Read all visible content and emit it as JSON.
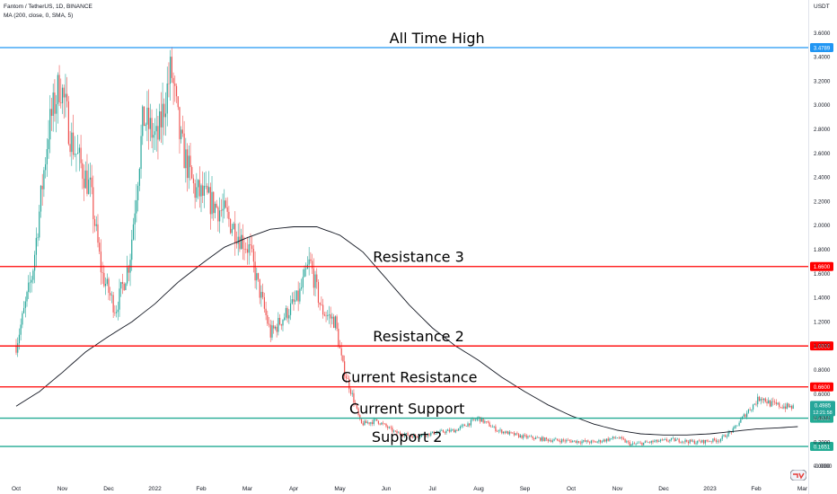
{
  "header": {
    "symbol_line": "Fantom / TetherUS, 1D, BINANCE",
    "indicator_line": "MA (200, close, 0, SMA, 5)",
    "currency": "USDT"
  },
  "chart_data": {
    "type": "candlestick",
    "title": "",
    "ylim": [
      -0.1,
      3.7
    ],
    "y_ticks": [
      "3.6000",
      "3.4000",
      "3.2000",
      "3.0000",
      "2.8000",
      "2.6000",
      "2.4000",
      "2.2000",
      "2.0000",
      "1.8000",
      "1.6000",
      "1.4000",
      "1.2000",
      "1.0000",
      "0.8000",
      "0.6000",
      "0.4000",
      "0.2000",
      "0.0000",
      "-0.0000"
    ],
    "y_tick_values": [
      3.6,
      3.4,
      3.2,
      3.0,
      2.8,
      2.6,
      2.4,
      2.2,
      2.0,
      1.8,
      1.6,
      1.4,
      1.2,
      1.0,
      0.8,
      0.6,
      0.4,
      0.2,
      0.0,
      -0.0
    ],
    "x_ticks": [
      "Oct",
      "Nov",
      "Dec",
      "2022",
      "Feb",
      "Mar",
      "Apr",
      "May",
      "Jun",
      "Jul",
      "Aug",
      "Sep",
      "Oct",
      "Nov",
      "Dec",
      "2023",
      "Feb",
      "Mar"
    ],
    "x_tick_months": [
      0,
      1,
      2,
      3,
      4,
      5,
      6,
      7,
      8,
      9,
      10,
      11,
      12,
      13,
      14,
      15,
      16,
      17
    ],
    "price_path_monthly": [
      [
        0.0,
        1.0
      ],
      [
        0.35,
        1.6
      ],
      [
        0.7,
        2.8
      ],
      [
        0.95,
        3.2
      ],
      [
        1.2,
        2.7
      ],
      [
        1.6,
        2.3
      ],
      [
        1.85,
        1.6
      ],
      [
        2.15,
        1.3
      ],
      [
        2.45,
        1.7
      ],
      [
        2.75,
        2.9
      ],
      [
        3.05,
        2.7
      ],
      [
        3.35,
        3.3
      ],
      [
        3.55,
        2.7
      ],
      [
        3.85,
        2.3
      ],
      [
        4.2,
        2.2
      ],
      [
        4.5,
        2.1
      ],
      [
        4.85,
        1.9
      ],
      [
        5.05,
        1.8
      ],
      [
        5.2,
        1.55
      ],
      [
        5.5,
        1.1
      ],
      [
        5.8,
        1.25
      ],
      [
        6.1,
        1.4
      ],
      [
        6.35,
        1.7
      ],
      [
        6.6,
        1.3
      ],
      [
        6.9,
        1.2
      ],
      [
        7.05,
        0.85
      ],
      [
        7.3,
        0.55
      ],
      [
        7.45,
        0.35
      ],
      [
        7.8,
        0.38
      ],
      [
        8.2,
        0.28
      ],
      [
        8.6,
        0.25
      ],
      [
        9.1,
        0.28
      ],
      [
        9.5,
        0.3
      ],
      [
        10.0,
        0.4
      ],
      [
        10.4,
        0.3
      ],
      [
        10.9,
        0.25
      ],
      [
        11.5,
        0.22
      ],
      [
        12.0,
        0.21
      ],
      [
        12.5,
        0.2
      ],
      [
        13.0,
        0.24
      ],
      [
        13.3,
        0.18
      ],
      [
        13.7,
        0.2
      ],
      [
        14.2,
        0.22
      ],
      [
        14.7,
        0.2
      ],
      [
        15.2,
        0.22
      ],
      [
        15.5,
        0.3
      ],
      [
        15.8,
        0.45
      ],
      [
        16.1,
        0.58
      ],
      [
        16.3,
        0.52
      ],
      [
        16.55,
        0.5
      ],
      [
        16.8,
        0.49
      ]
    ],
    "ma200_monthly": [
      [
        0.0,
        0.5
      ],
      [
        0.5,
        0.62
      ],
      [
        1.0,
        0.78
      ],
      [
        1.5,
        0.95
      ],
      [
        2.0,
        1.08
      ],
      [
        2.5,
        1.2
      ],
      [
        3.0,
        1.35
      ],
      [
        3.5,
        1.53
      ],
      [
        4.0,
        1.68
      ],
      [
        4.5,
        1.82
      ],
      [
        5.0,
        1.9
      ],
      [
        5.5,
        1.97
      ],
      [
        6.0,
        1.99
      ],
      [
        6.5,
        1.99
      ],
      [
        7.0,
        1.92
      ],
      [
        7.5,
        1.78
      ],
      [
        8.0,
        1.56
      ],
      [
        8.5,
        1.34
      ],
      [
        9.0,
        1.15
      ],
      [
        9.5,
        1.0
      ],
      [
        10.0,
        0.88
      ],
      [
        10.5,
        0.74
      ],
      [
        11.0,
        0.62
      ],
      [
        11.5,
        0.51
      ],
      [
        12.0,
        0.42
      ],
      [
        12.5,
        0.35
      ],
      [
        13.0,
        0.3
      ],
      [
        13.5,
        0.27
      ],
      [
        14.0,
        0.26
      ],
      [
        14.5,
        0.26
      ],
      [
        15.0,
        0.27
      ],
      [
        15.5,
        0.29
      ],
      [
        16.0,
        0.31
      ],
      [
        16.5,
        0.32
      ],
      [
        16.9,
        0.33
      ]
    ],
    "ma_label": "MA (200, close, 0, SMA, 5)",
    "last_price": "0.4985",
    "countdown": "12:21:58",
    "levels": [
      {
        "label": "All Time High",
        "value": 3.4789,
        "value_label": "3.4789",
        "color": "#2196f3",
        "label_month": 9.1
      },
      {
        "label": "Resistance 3",
        "value": 1.66,
        "value_label": "1.6600",
        "color": "#ff0000",
        "label_month": 8.7
      },
      {
        "label": "Resistance 2",
        "value": 1.0,
        "value_label": "1.0000",
        "color": "#ff0000",
        "label_month": 8.7
      },
      {
        "label": "Current Resistance",
        "value": 0.66,
        "value_label": "0.6600",
        "color": "#ff0000",
        "label_month": 8.5
      },
      {
        "label": "Current Support",
        "value": 0.4,
        "value_label": "0.4000",
        "color": "#22ab94",
        "label_month": 8.45
      },
      {
        "label": "Support 2",
        "value": 0.1651,
        "value_label": "0.1651",
        "color": "#22ab94",
        "label_month": 8.45
      }
    ],
    "colors": {
      "up": "#26a69a",
      "down": "#ef5350",
      "ma": "#131722",
      "price_badge": "#26a69a"
    }
  }
}
